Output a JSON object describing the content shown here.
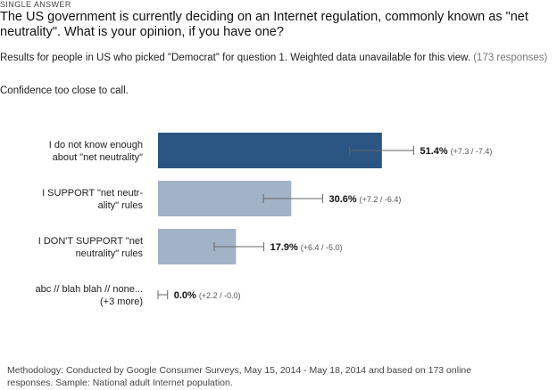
{
  "header": {
    "eyebrow": "SINGLE ANSWER",
    "question": "The US government is currently deciding on an Internet regulation, commonly known as \"net neutrality\". What is your opinion, if you have one?",
    "subtitle_main": "Results for people in US who picked \"Democrat\" for question 1. Weighted data unavailable for this view.",
    "subtitle_count": "(173 responses)",
    "confidence": "Confidence too close to call."
  },
  "chart_data": {
    "type": "bar",
    "orientation": "horizontal",
    "categories": [
      [
        "I do not know enough",
        "about \"net neutrality\""
      ],
      [
        "I SUPPORT \"net neutr-",
        "ality\" rules"
      ],
      [
        "I DON'T SUPPORT \"net",
        "neutrality\" rules"
      ],
      [
        "abc // blah blah // none...",
        "(+3 more)"
      ]
    ],
    "values": [
      51.4,
      30.6,
      17.9,
      0.0
    ],
    "value_labels": [
      "51.4%",
      "30.6%",
      "17.9%",
      "0.0%"
    ],
    "error_plus": [
      7.3,
      7.2,
      6.4,
      2.2
    ],
    "error_minus": [
      7.4,
      6.4,
      5.0,
      0.0
    ],
    "error_labels": [
      "(+7.3 / -7.4)",
      "(+7.2 / -6.4)",
      "(+6.4 / -5.0)",
      "(+2.2 / -0.0)"
    ],
    "colors": [
      "#2b5582",
      "#a3b3c7",
      "#a3b3c7",
      "#a3b3c7"
    ],
    "xlim": [
      0,
      100
    ]
  },
  "footer": {
    "methodology": "Methodology: Conducted by Google Consumer Surveys, May 15, 2014 - May 18, 2014 and based on 173 online responses. Sample: National adult Internet population."
  }
}
